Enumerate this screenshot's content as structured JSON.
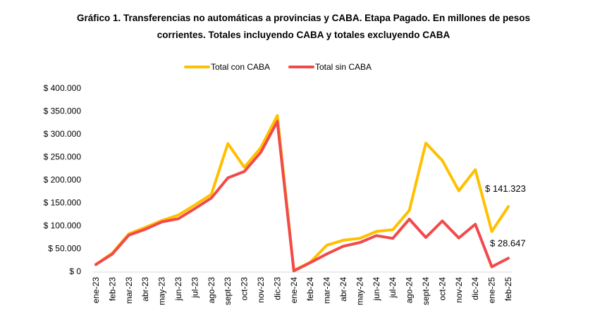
{
  "chart_data": {
    "type": "line",
    "title_line1": "Gráfico 1. Transferencias no automáticas a provincias y CABA. Etapa Pagado. En millones de pesos",
    "title_line2": "corrientes. Totales incluyendo CABA y totales excluyendo CABA",
    "categories": [
      "ene-23",
      "feb-23",
      "mar-23",
      "abr-23",
      "may-23",
      "jun-23",
      "jul-23",
      "ago-23",
      "sept-23",
      "oct-23",
      "nov-23",
      "dic-23",
      "ene-24",
      "feb-24",
      "mar-24",
      "abr-24",
      "may-24",
      "jun-24",
      "jul-24",
      "ago-24",
      "sept-24",
      "oct-24",
      "nov-24",
      "dic-24",
      "ene-25",
      "feb-25"
    ],
    "y_ticks": [
      "$ 0",
      "$ 50.000",
      "$ 100.000",
      "$ 150.000",
      "$ 200.000",
      "$ 250.000",
      "$ 300.000",
      "$ 350.000",
      "$ 400.000"
    ],
    "ylim": [
      0,
      400000
    ],
    "legend_position": "top-center",
    "series": [
      {
        "name": "Total con CABA",
        "color": "#FFC000",
        "values": [
          15000,
          40000,
          82000,
          96000,
          111000,
          123000,
          145000,
          168000,
          279000,
          227000,
          270000,
          340000,
          2000,
          20000,
          57000,
          68000,
          72000,
          87000,
          91000,
          133000,
          280000,
          242000,
          176000,
          222000,
          87000,
          141323
        ]
      },
      {
        "name": "Total sin CABA",
        "color": "#F24A4A",
        "values": [
          15000,
          38000,
          79000,
          92000,
          108000,
          115000,
          137000,
          160000,
          204000,
          218000,
          260000,
          327000,
          1000,
          19000,
          38000,
          55000,
          63000,
          78000,
          72000,
          114000,
          74000,
          110000,
          73000,
          103000,
          10000,
          28647
        ]
      }
    ],
    "annotations": [
      {
        "text": "$ 141.323",
        "series": 0,
        "index": 25
      },
      {
        "text": "$ 28.647",
        "series": 1,
        "index": 25
      }
    ]
  }
}
